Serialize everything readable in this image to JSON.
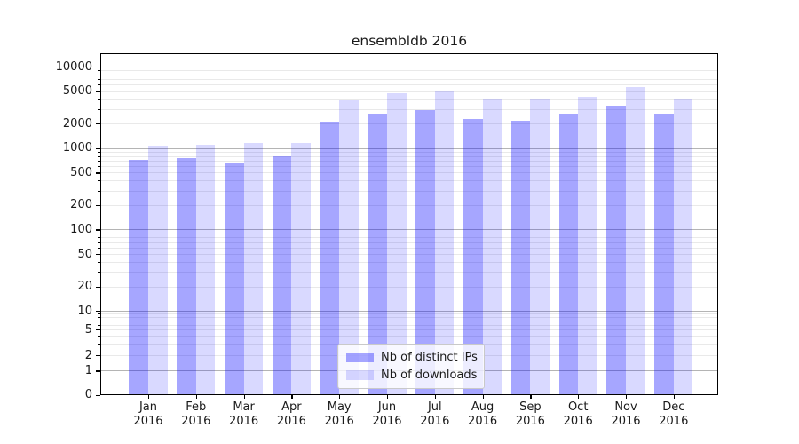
{
  "page": {
    "background_color": "#ffffff"
  },
  "chart_data": {
    "type": "bar",
    "title": "ensembldb 2016",
    "categories": [
      "Jan",
      "Feb",
      "Mar",
      "Apr",
      "May",
      "Jun",
      "Jul",
      "Aug",
      "Sep",
      "Oct",
      "Nov",
      "Dec"
    ],
    "x_year_label": "2016",
    "series": [
      {
        "name": "Nb of distinct IPs",
        "color": "rgba(0,0,255,0.35)",
        "values": [
          720,
          750,
          660,
          800,
          2100,
          2650,
          2900,
          2300,
          2150,
          2660,
          3350,
          2620
        ]
      },
      {
        "name": "Nb of downloads",
        "color": "rgba(0,0,255,0.15)",
        "values": [
          1070,
          1100,
          1160,
          1160,
          3880,
          4700,
          5100,
          4080,
          4080,
          4260,
          5650,
          3980
        ]
      }
    ],
    "xlabel": "",
    "ylabel": "",
    "yscale": "symlog",
    "ylim": [
      0,
      14500
    ],
    "y_ticks": [
      0,
      1,
      2,
      5,
      10,
      20,
      50,
      100,
      200,
      500,
      1000,
      2000,
      5000,
      10000
    ],
    "grid": "on",
    "grid_major_color": "#b4b4b4",
    "grid_minor_color": "#e9e9e9",
    "legend_position": "lower center"
  }
}
